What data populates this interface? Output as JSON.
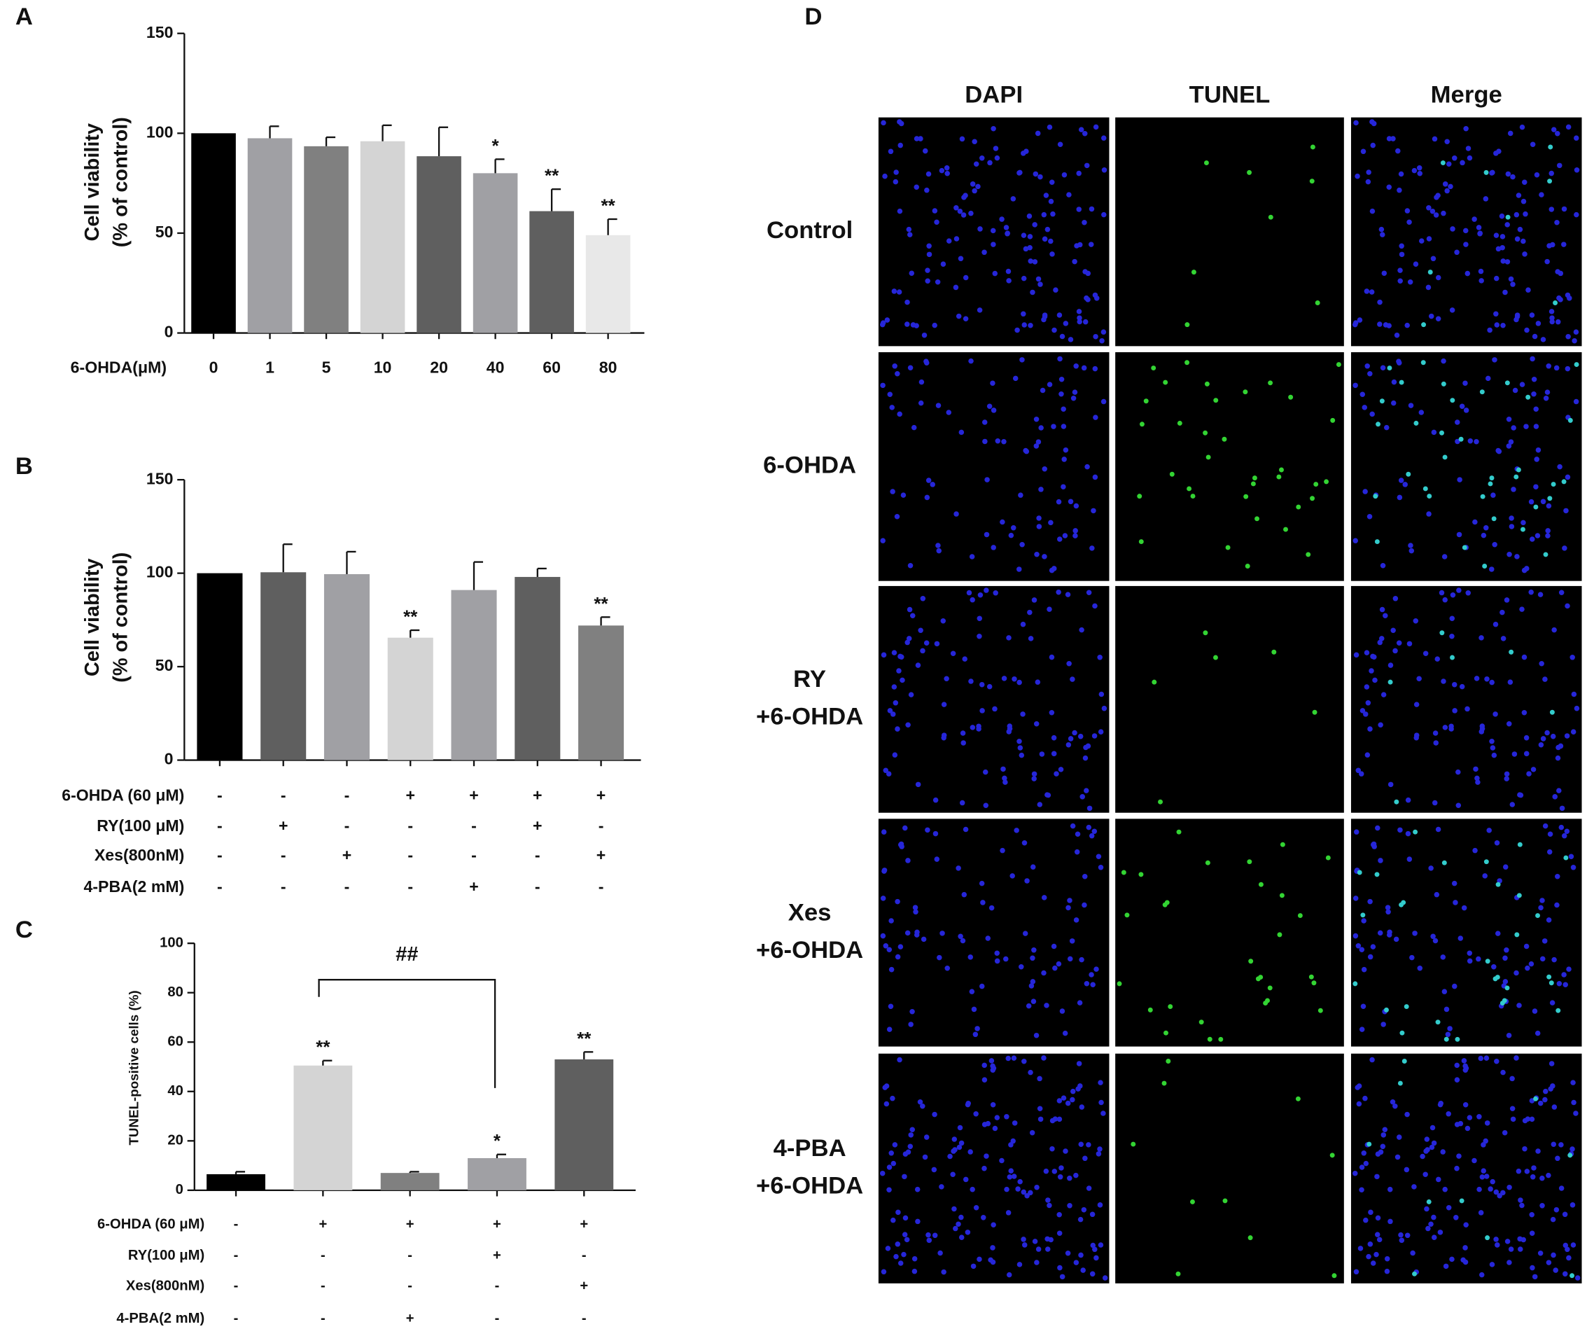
{
  "panel_labels": [
    "A",
    "B",
    "C",
    "D"
  ],
  "chart_data": [
    {
      "type": "bar",
      "x_label": "6-OHDA(μM)",
      "y_label": [
        "Cell viability",
        "(% of control)"
      ],
      "categories": [
        "0",
        "1",
        "5",
        "10",
        "20",
        "40",
        "60",
        "80"
      ],
      "values": [
        100,
        97.5,
        93.5,
        96,
        88.5,
        80,
        61,
        49
      ],
      "errors": [
        0,
        6,
        4.5,
        8,
        14.5,
        7,
        11,
        8
      ],
      "colors": [
        "#000000",
        "#a0a0a4",
        "#808080",
        "#d4d4d4",
        "#5f5f5f",
        "#a0a0a4",
        "#5f5f5f",
        "#e8e8e8"
      ],
      "annotations": [
        null,
        null,
        null,
        null,
        null,
        "*",
        "**",
        "**"
      ],
      "ylim": [
        0,
        150
      ],
      "yticks": [
        0,
        50,
        100,
        150
      ]
    },
    {
      "type": "bar",
      "y_label": [
        "Cell viability",
        "(% of control)"
      ],
      "categories": [
        null,
        null,
        null,
        null,
        null,
        null,
        null
      ],
      "values": [
        100,
        100.5,
        99.5,
        65.5,
        91,
        98,
        72
      ],
      "errors": [
        0,
        15,
        12,
        4,
        15,
        4.5,
        4.5
      ],
      "colors": [
        "#000000",
        "#5f5f5f",
        "#a0a0a4",
        "#d4d4d4",
        "#a0a0a4",
        "#5f5f5f",
        "#808080"
      ],
      "annotations": [
        null,
        null,
        null,
        "**",
        null,
        null,
        "**"
      ],
      "treatments": [
        {
          "name": "6-OHDA (60 μM)",
          "values": [
            "-",
            "-",
            "-",
            "+",
            "+",
            "+",
            "+"
          ]
        },
        {
          "name": "RY(100 μM)",
          "values": [
            "-",
            "+",
            "-",
            "-",
            "-",
            "+",
            "-"
          ]
        },
        {
          "name": "Xes(800nM)",
          "values": [
            "-",
            "-",
            "+",
            "-",
            "-",
            "-",
            "+"
          ]
        },
        {
          "name": "4-PBA(2 mM)",
          "values": [
            "-",
            "-",
            "-",
            "-",
            "+",
            "-",
            "-"
          ]
        }
      ],
      "ylim": [
        0,
        150
      ],
      "yticks": [
        0,
        50,
        100,
        150
      ]
    },
    {
      "type": "bar",
      "y_label": [
        "TUNEL-positive cells (%)"
      ],
      "categories": [
        null,
        null,
        null,
        null,
        null
      ],
      "values": [
        6.5,
        50.5,
        7,
        13,
        53
      ],
      "errors": [
        1,
        2,
        0.5,
        1.5,
        3
      ],
      "colors": [
        "#000000",
        "#d4d4d4",
        "#808080",
        "#a0a0a4",
        "#5f5f5f"
      ],
      "annotations": [
        null,
        "**",
        null,
        "*",
        "**"
      ],
      "bracket": {
        "label": "##",
        "between": [
          1,
          3
        ]
      },
      "treatments": [
        {
          "name": "6-OHDA (60 μM)",
          "values": [
            "-",
            "+",
            "+",
            "+",
            "+"
          ]
        },
        {
          "name": "RY(100 μM)",
          "values": [
            "-",
            "-",
            "-",
            "+",
            "-"
          ]
        },
        {
          "name": "Xes(800nM)",
          "values": [
            "-",
            "-",
            "-",
            "-",
            "+"
          ]
        },
        {
          "name": "4-PBA(2 mM)",
          "values": [
            "-",
            "-",
            "+",
            "-",
            "-"
          ]
        }
      ],
      "ylim": [
        0,
        100
      ],
      "yticks": [
        0,
        20,
        40,
        60,
        80,
        100
      ]
    }
  ],
  "image_panel": {
    "columns": [
      "DAPI",
      "TUNEL",
      "Merge"
    ],
    "rows": [
      [
        "Control"
      ],
      [
        "6-OHDA"
      ],
      [
        "RY",
        "+6-OHDA"
      ],
      [
        "Xes",
        "+6-OHDA"
      ],
      [
        "4-PBA",
        "+6-OHDA"
      ]
    ]
  }
}
